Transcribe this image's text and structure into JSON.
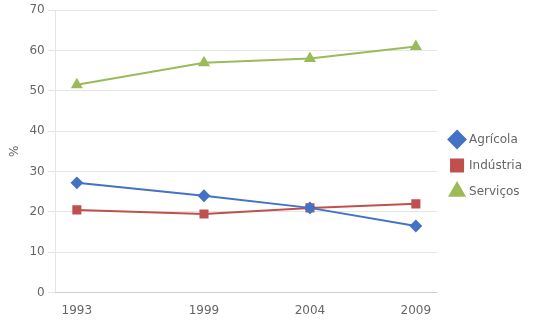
{
  "chart_data": {
    "type": "line",
    "x": [
      1993,
      1999,
      2004,
      2009
    ],
    "series": [
      {
        "name": "Agrícola",
        "color": "#4472c4",
        "marker": "diamond",
        "values": [
          27.2,
          24.0,
          21.0,
          16.5
        ]
      },
      {
        "name": "Indústria",
        "color": "#c0504d",
        "marker": "square",
        "values": [
          20.5,
          19.5,
          21.0,
          22.0
        ]
      },
      {
        "name": "Serviços",
        "color": "#9bbb59",
        "marker": "triangle",
        "values": [
          51.5,
          57.0,
          58.0,
          61.0
        ]
      }
    ],
    "ylabel": "%",
    "xlim": [
      1992,
      2010
    ],
    "xticks": [
      1993,
      1999,
      2004,
      2009
    ],
    "ylim": [
      0,
      70
    ],
    "yticks": [
      0,
      10,
      20,
      30,
      40,
      50,
      60,
      70
    ],
    "grid": true,
    "legend": "right"
  }
}
